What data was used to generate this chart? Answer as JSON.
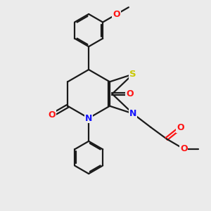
{
  "background_color": "#ebebeb",
  "bond_color": "#1a1a1a",
  "nitrogen_color": "#1414ff",
  "oxygen_color": "#ff1414",
  "sulfur_color": "#c8c800",
  "figsize": [
    3.0,
    3.0
  ],
  "dpi": 100,
  "xlim": [
    0,
    10
  ],
  "ylim": [
    0,
    10
  ]
}
